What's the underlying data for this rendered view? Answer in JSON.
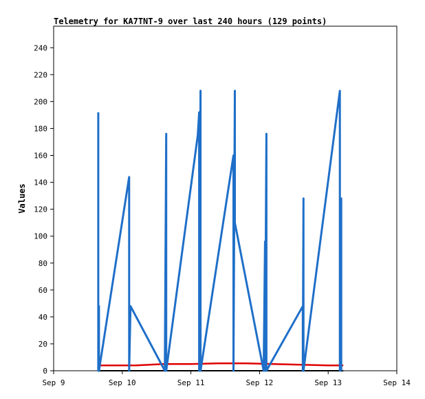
{
  "chart_data": {
    "type": "line",
    "title": "Telemetry for KA7TNT-9 over last 240 hours (129 points)",
    "xlabel": "",
    "ylabel": "Values",
    "x_ticks": [
      "Sep 9",
      "Sep 10",
      "Sep 11",
      "Sep 12",
      "Sep 13",
      "Sep 14"
    ],
    "y_ticks": [
      0,
      20,
      40,
      60,
      80,
      100,
      120,
      140,
      160,
      180,
      200,
      220,
      240
    ],
    "xlim": [
      0,
      5
    ],
    "ylim": [
      0,
      256
    ],
    "grid": false,
    "legend": "none",
    "series": [
      {
        "color": "#000000",
        "points": [
          [
            0.64,
            0
          ],
          [
            4.22,
            0
          ]
        ]
      },
      {
        "color": "#e00000",
        "points": [
          [
            0.64,
            4
          ],
          [
            1.2,
            4
          ],
          [
            1.6,
            5
          ],
          [
            2.0,
            5
          ],
          [
            2.4,
            5.5
          ],
          [
            2.8,
            5.5
          ],
          [
            3.2,
            5
          ],
          [
            3.6,
            4.5
          ],
          [
            4.0,
            4
          ],
          [
            4.22,
            4
          ]
        ]
      },
      {
        "color": "#1f6fc8",
        "points": [
          [
            0.65,
            192
          ],
          [
            0.65,
            0
          ],
          [
            0.66,
            48
          ],
          [
            0.66,
            0
          ],
          [
            1.1,
            144
          ],
          [
            1.1,
            0
          ],
          [
            1.12,
            48
          ],
          [
            1.62,
            0
          ],
          [
            1.64,
            176
          ],
          [
            1.64,
            0
          ],
          [
            2.1,
            175
          ],
          [
            2.12,
            192
          ],
          [
            2.12,
            0
          ],
          [
            2.14,
            208
          ],
          [
            2.14,
            0
          ],
          [
            2.62,
            160
          ],
          [
            2.62,
            0
          ],
          [
            2.64,
            208
          ],
          [
            2.64,
            110
          ],
          [
            3.06,
            0
          ],
          [
            3.08,
            96
          ],
          [
            3.08,
            0
          ],
          [
            3.1,
            176
          ],
          [
            3.1,
            0
          ],
          [
            3.63,
            48
          ],
          [
            3.63,
            0
          ],
          [
            3.64,
            128
          ],
          [
            3.64,
            0
          ],
          [
            4.17,
            208
          ],
          [
            4.17,
            0
          ],
          [
            4.19,
            128
          ],
          [
            4.19,
            0
          ]
        ]
      }
    ]
  }
}
